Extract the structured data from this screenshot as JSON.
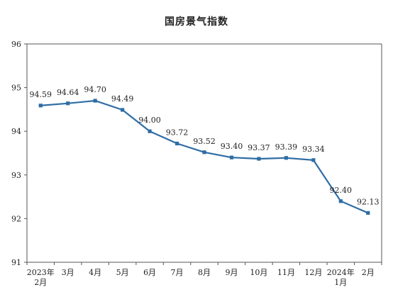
{
  "chart_data": {
    "type": "line",
    "title": "国房景气指数",
    "categories": [
      [
        "2023年",
        "2月"
      ],
      [
        "3月"
      ],
      [
        "4月"
      ],
      [
        "5月"
      ],
      [
        "6月"
      ],
      [
        "7月"
      ],
      [
        "8月"
      ],
      [
        "9月"
      ],
      [
        "10月"
      ],
      [
        "11月"
      ],
      [
        "12月"
      ],
      [
        "2024年",
        "1月"
      ],
      [
        "2月"
      ]
    ],
    "values": [
      94.59,
      94.64,
      94.7,
      94.49,
      94.0,
      93.72,
      93.52,
      93.4,
      93.37,
      93.39,
      93.34,
      92.4,
      92.13
    ],
    "value_labels": [
      "94.59",
      "94.64",
      "94.70",
      "94.49",
      "94.00",
      "93.72",
      "93.52",
      "93.40",
      "93.37",
      "93.39",
      "93.34",
      "92.40",
      "92.13"
    ],
    "ylim": [
      91,
      96
    ],
    "yticks": [
      91,
      92,
      93,
      94,
      95,
      96
    ],
    "grid": false,
    "legend": "none",
    "colors": {
      "line": "#2e6da4",
      "marker": "#2e6da4",
      "axis": "#555555",
      "text": "#222222"
    }
  }
}
